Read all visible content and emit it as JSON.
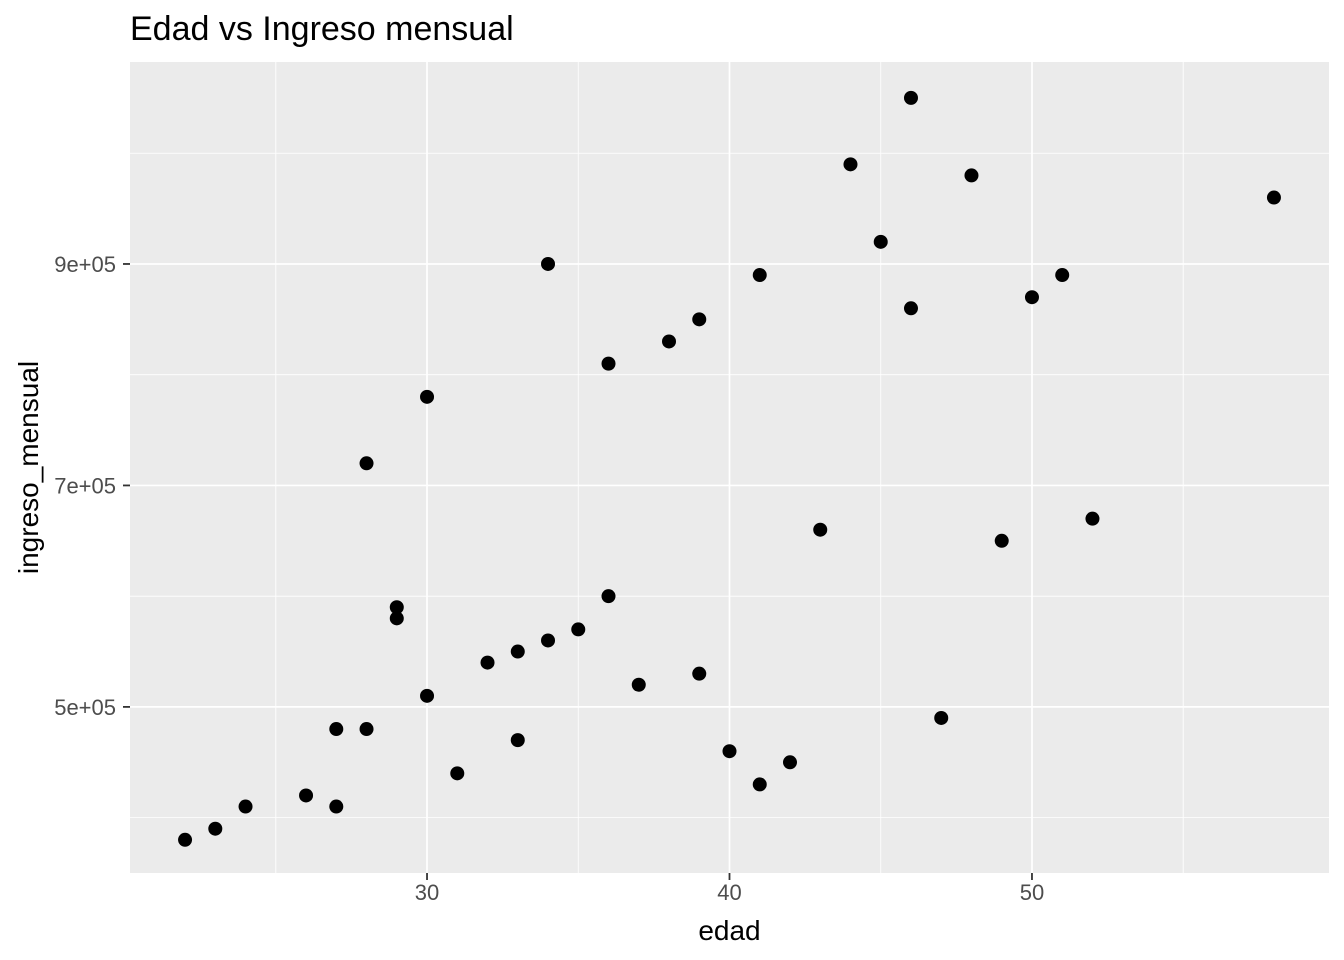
{
  "chart_data": {
    "type": "scatter",
    "title": "Edad vs Ingreso mensual",
    "xlabel": "edad",
    "ylabel": "ingreso_mensual",
    "x_domain": [
      20.18,
      59.82
    ],
    "y_domain": [
      350000,
      1082400
    ],
    "x_major_ticks": [
      {
        "value": 30,
        "label": "30"
      },
      {
        "value": 40,
        "label": "40"
      },
      {
        "value": 50,
        "label": "50"
      }
    ],
    "x_minor_ticks": [
      25,
      35,
      45,
      55
    ],
    "y_major_ticks": [
      {
        "value": 500000,
        "label": "5e+05"
      },
      {
        "value": 700000,
        "label": "7e+05"
      },
      {
        "value": 900000,
        "label": "9e+05"
      }
    ],
    "y_minor_ticks": [
      400000,
      600000,
      800000,
      1000000
    ],
    "grid": "major-and-minor",
    "legend_position": "none",
    "point_count": 41,
    "points": [
      [
        22,
        380000
      ],
      [
        23,
        390000
      ],
      [
        24,
        410000
      ],
      [
        26,
        420000
      ],
      [
        27,
        410000
      ],
      [
        27,
        480000
      ],
      [
        28,
        480000
      ],
      [
        28,
        720000
      ],
      [
        29,
        580000
      ],
      [
        29,
        590000
      ],
      [
        30,
        510000
      ],
      [
        30,
        780000
      ],
      [
        31,
        440000
      ],
      [
        32,
        540000
      ],
      [
        33,
        470000
      ],
      [
        33,
        550000
      ],
      [
        34,
        560000
      ],
      [
        34,
        900000
      ],
      [
        35,
        570000
      ],
      [
        36,
        600000
      ],
      [
        36,
        810000
      ],
      [
        37,
        520000
      ],
      [
        38,
        830000
      ],
      [
        39,
        530000
      ],
      [
        39,
        850000
      ],
      [
        40,
        460000
      ],
      [
        41,
        430000
      ],
      [
        41,
        890000
      ],
      [
        42,
        450000
      ],
      [
        43,
        660000
      ],
      [
        44,
        990000
      ],
      [
        45,
        920000
      ],
      [
        46,
        860000
      ],
      [
        46,
        1050000
      ],
      [
        47,
        490000
      ],
      [
        48,
        980000
      ],
      [
        49,
        650000
      ],
      [
        50,
        870000
      ],
      [
        51,
        890000
      ],
      [
        52,
        670000
      ],
      [
        58,
        960000
      ]
    ]
  },
  "style": {
    "outer_background": "#FFFFFF",
    "panel_background": "#EBEBEB",
    "gridline_color": "#FFFFFF",
    "point_color": "#000000",
    "title_color": "#000000",
    "axis_title_color": "#000000",
    "tick_label_color": "#4D4D4D",
    "tick_mark_color": "#333333"
  }
}
